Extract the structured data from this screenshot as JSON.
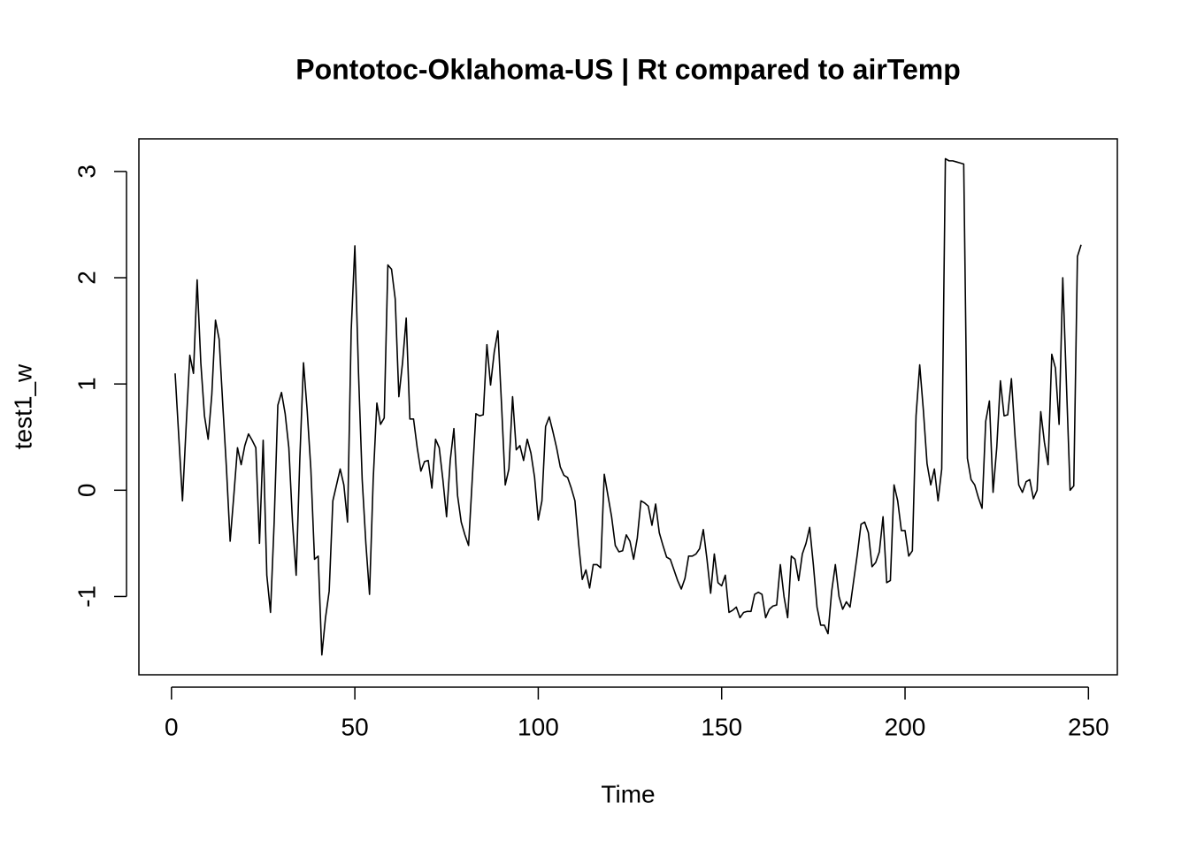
{
  "chart_data": {
    "type": "line",
    "title": "Pontotoc-Oklahoma-US | Rt compared to airTemp",
    "x_label": "Time",
    "y_label": "test1_w",
    "color": "#000000",
    "xlim": [
      -8.88,
      257.88
    ],
    "ylim": [
      -1.737,
      3.307
    ],
    "xticks": [
      0,
      50,
      100,
      150,
      200,
      250
    ],
    "yticks": [
      -1,
      0,
      1,
      2,
      3
    ],
    "x": [
      1,
      2,
      3,
      4,
      5,
      6,
      7,
      8,
      9,
      10,
      11,
      12,
      13,
      14,
      15,
      16,
      17,
      18,
      19,
      20,
      21,
      22,
      23,
      24,
      25,
      26,
      27,
      28,
      29,
      30,
      31,
      32,
      33,
      34,
      35,
      36,
      37,
      38,
      39,
      40,
      41,
      42,
      43,
      44,
      45,
      46,
      47,
      48,
      49,
      50,
      51,
      52,
      53,
      54,
      55,
      56,
      57,
      58,
      59,
      60,
      61,
      62,
      63,
      64,
      65,
      66,
      67,
      68,
      69,
      70,
      71,
      72,
      73,
      74,
      75,
      76,
      77,
      78,
      79,
      80,
      81,
      82,
      83,
      84,
      85,
      86,
      87,
      88,
      89,
      90,
      91,
      92,
      93,
      94,
      95,
      96,
      97,
      98,
      99,
      100,
      101,
      102,
      103,
      104,
      105,
      106,
      107,
      108,
      109,
      110,
      111,
      112,
      113,
      114,
      115,
      116,
      117,
      118,
      119,
      120,
      121,
      122,
      123,
      124,
      125,
      126,
      127,
      128,
      129,
      130,
      131,
      132,
      133,
      134,
      135,
      136,
      137,
      138,
      139,
      140,
      141,
      142,
      143,
      144,
      145,
      146,
      147,
      148,
      149,
      150,
      151,
      152,
      153,
      154,
      155,
      156,
      157,
      158,
      159,
      160,
      161,
      162,
      163,
      164,
      165,
      166,
      167,
      168,
      169,
      170,
      171,
      172,
      173,
      174,
      175,
      176,
      177,
      178,
      179,
      180,
      181,
      182,
      183,
      184,
      185,
      186,
      187,
      188,
      189,
      190,
      191,
      192,
      193,
      194,
      195,
      196,
      197,
      198,
      199,
      200,
      201,
      202,
      203,
      204,
      205,
      206,
      207,
      208,
      209,
      210,
      211,
      212,
      213,
      214,
      215,
      216,
      217,
      218,
      219,
      220,
      221,
      222,
      223,
      224,
      225,
      226,
      227,
      228,
      229,
      230,
      231,
      232,
      233,
      234,
      235,
      236,
      237,
      238,
      239,
      240,
      241,
      242,
      243,
      244,
      245,
      246,
      247,
      248
    ],
    "values": [
      1.1,
      0.5,
      -0.1,
      0.6,
      1.27,
      1.1,
      1.98,
      1.2,
      0.7,
      0.48,
      0.9,
      1.6,
      1.42,
      0.8,
      0.2,
      -0.48,
      -0.05,
      0.4,
      0.24,
      0.42,
      0.53,
      0.47,
      0.4,
      -0.5,
      0.47,
      -0.8,
      -1.15,
      -0.3,
      0.8,
      0.92,
      0.72,
      0.4,
      -0.3,
      -0.8,
      0.3,
      1.2,
      0.75,
      0.2,
      -0.65,
      -0.62,
      -1.55,
      -1.2,
      -0.95,
      -0.1,
      0.05,
      0.2,
      0.05,
      -0.3,
      1.5,
      2.3,
      1.1,
      0.1,
      -0.5,
      -0.98,
      0.1,
      0.82,
      0.62,
      0.68,
      2.12,
      2.08,
      1.8,
      0.88,
      1.2,
      1.62,
      0.67,
      0.67,
      0.4,
      0.18,
      0.27,
      0.28,
      0.02,
      0.48,
      0.4,
      0.1,
      -0.25,
      0.28,
      0.58,
      -0.05,
      -0.3,
      -0.42,
      -0.52,
      0.1,
      0.72,
      0.7,
      0.71,
      1.37,
      0.99,
      1.3,
      1.5,
      0.8,
      0.05,
      0.2,
      0.88,
      0.38,
      0.42,
      0.28,
      0.48,
      0.35,
      0.12,
      -0.28,
      -0.1,
      0.6,
      0.69,
      0.55,
      0.4,
      0.22,
      0.14,
      0.12,
      0.02,
      -0.1,
      -0.5,
      -0.84,
      -0.75,
      -0.92,
      -0.7,
      -0.7,
      -0.73,
      0.15,
      -0.05,
      -0.25,
      -0.52,
      -0.58,
      -0.57,
      -0.42,
      -0.48,
      -0.65,
      -0.45,
      -0.1,
      -0.12,
      -0.15,
      -0.33,
      -0.13,
      -0.4,
      -0.52,
      -0.63,
      -0.65,
      -0.75,
      -0.85,
      -0.93,
      -0.83,
      -0.62,
      -0.62,
      -0.6,
      -0.55,
      -0.37,
      -0.65,
      -0.97,
      -0.6,
      -0.87,
      -0.9,
      -0.8,
      -1.15,
      -1.13,
      -1.1,
      -1.2,
      -1.15,
      -1.14,
      -1.14,
      -0.98,
      -0.96,
      -0.98,
      -1.2,
      -1.12,
      -1.09,
      -1.08,
      -0.7,
      -1.0,
      -1.2,
      -0.62,
      -0.65,
      -0.85,
      -0.6,
      -0.5,
      -0.35,
      -0.7,
      -1.1,
      -1.27,
      -1.27,
      -1.35,
      -0.95,
      -0.7,
      -1.0,
      -1.12,
      -1.05,
      -1.1,
      -0.85,
      -0.6,
      -0.32,
      -0.3,
      -0.4,
      -0.72,
      -0.68,
      -0.58,
      -0.25,
      -0.87,
      -0.85,
      0.05,
      -0.1,
      -0.38,
      -0.38,
      -0.62,
      -0.57,
      0.7,
      1.18,
      0.75,
      0.25,
      0.05,
      0.2,
      -0.1,
      0.2,
      3.12,
      3.1,
      3.1,
      3.09,
      3.08,
      3.07,
      0.3,
      0.1,
      0.05,
      -0.07,
      -0.17,
      0.65,
      0.84,
      -0.02,
      0.4,
      1.03,
      0.7,
      0.71,
      1.05,
      0.5,
      0.05,
      -0.02,
      0.08,
      0.1,
      -0.08,
      0.0,
      0.74,
      0.45,
      0.24,
      1.28,
      1.15,
      0.62,
      2.0,
      1.0,
      0.0,
      0.04,
      2.2,
      2.31
    ]
  }
}
